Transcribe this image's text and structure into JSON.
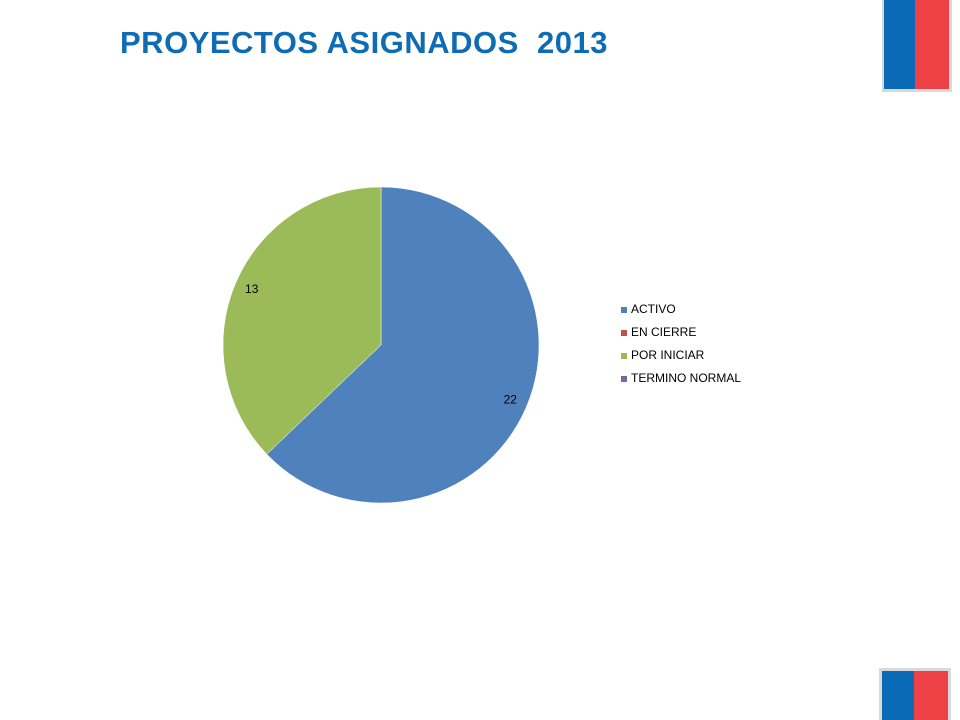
{
  "chart_data": {
    "type": "pie",
    "title": "PROYECTOS ASIGNADOS  2013",
    "categories": [
      "ACTIVO",
      "EN CIERRE",
      "POR INICIAR",
      "TERMINO NORMAL"
    ],
    "values": [
      22,
      0,
      13,
      0
    ],
    "colors": [
      "#4f81bd",
      "#c0504d",
      "#9bbb59",
      "#8064a2"
    ],
    "legend": "right"
  }
}
